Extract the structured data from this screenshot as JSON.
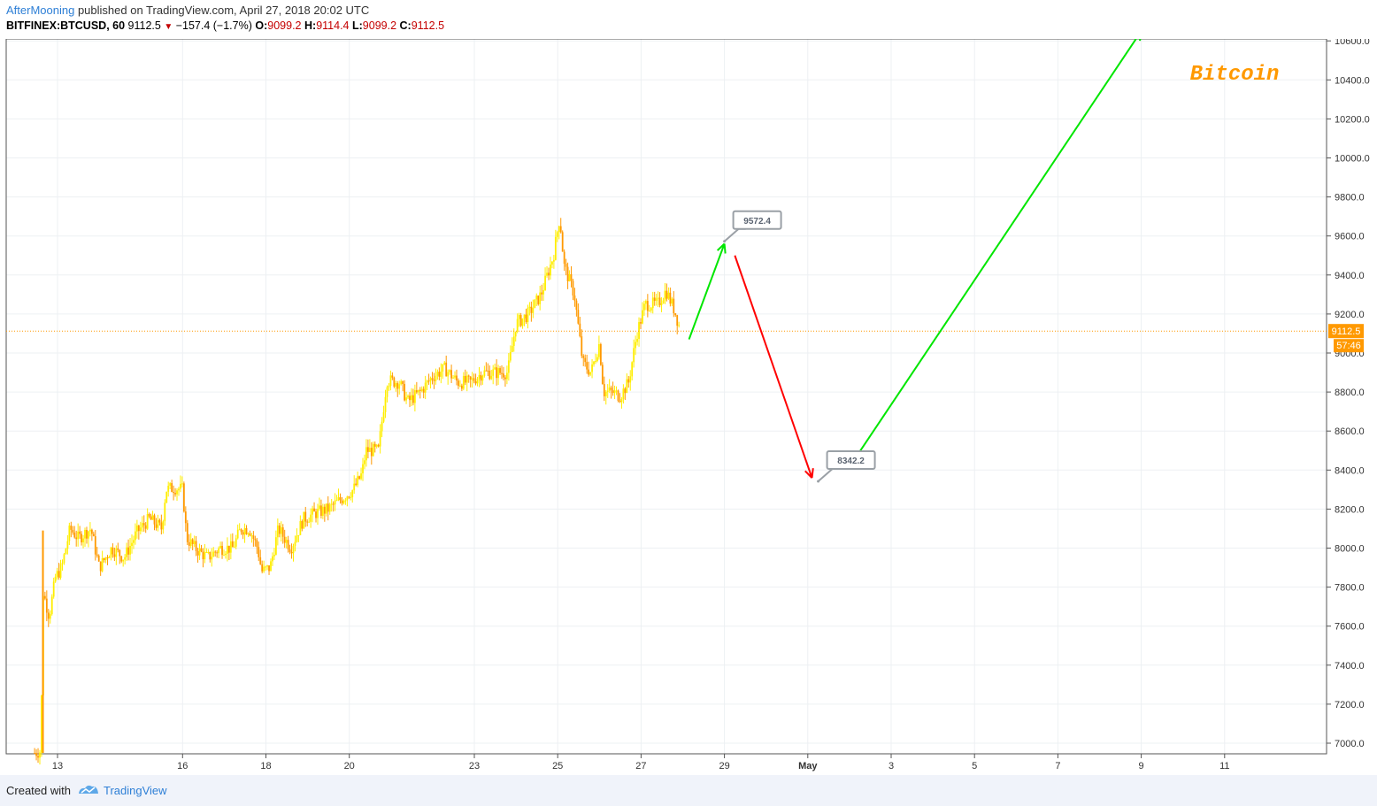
{
  "header": {
    "author": "AfterMooning",
    "published": "published on TradingView.com, April 27, 2018 20:02 UTC",
    "symbol": "BITFINEX:BTCUSD, 60",
    "last": "9112.5",
    "change": "−157.4 (−1.7%)",
    "o_label": "O:",
    "o": "9099.2",
    "h_label": "H:",
    "h": "9114.4",
    "l_label": "L:",
    "l": "9099.2",
    "c_label": "C:",
    "c": "9112.5"
  },
  "footer": {
    "created": "Created with",
    "brand": "TradingView"
  },
  "colors": {
    "candle_up": "#ffee00",
    "candle_down": "#ff9900",
    "arrow_up": "#00e600",
    "arrow_down": "#ff0000",
    "price_line": "#ff9900",
    "watermark": "#ff9900"
  },
  "chart_data": {
    "type": "candlestick",
    "title": "Bitcoin",
    "interval": "60",
    "ylim": [
      6920,
      10650
    ],
    "yticks": [
      7000,
      7200,
      7400,
      7600,
      7800,
      8000,
      8200,
      8400,
      8600,
      8800,
      9000,
      9200,
      9400,
      9600,
      9800,
      10000,
      10200,
      10400,
      10600
    ],
    "ytick_labels": [
      "7000.0",
      "7200.0",
      "7400.0",
      "7600.0",
      "7800.0",
      "8000.0",
      "8200.0",
      "8400.0",
      "8600.0",
      "8800.0",
      "9000.0",
      "9200.0",
      "9400.0",
      "9600.0",
      "9800.0",
      "10000.0",
      "10200.0",
      "10400.0",
      "10600.0"
    ],
    "xlim": [
      12.5,
      13.7
    ],
    "xticks": [
      {
        "day": 13,
        "label": "13"
      },
      {
        "day": 16,
        "label": "16"
      },
      {
        "day": 18,
        "label": "18"
      },
      {
        "day": 20,
        "label": "20"
      },
      {
        "day": 23,
        "label": "23"
      },
      {
        "day": 25,
        "label": "25"
      },
      {
        "day": 27,
        "label": "27"
      },
      {
        "day": 29,
        "label": "29"
      },
      {
        "day": 31,
        "label": "May"
      },
      {
        "day": 33,
        "label": "3"
      },
      {
        "day": 35,
        "label": "5"
      },
      {
        "day": 37,
        "label": "7"
      },
      {
        "day": 39,
        "label": "9"
      },
      {
        "day": 41,
        "label": "11"
      }
    ],
    "price_path": [
      [
        12.45,
        6950
      ],
      [
        12.6,
        6960
      ],
      [
        12.65,
        7780
      ],
      [
        12.8,
        7650
      ],
      [
        12.95,
        7850
      ],
      [
        13.1,
        7900
      ],
      [
        13.3,
        8100
      ],
      [
        13.5,
        8050
      ],
      [
        13.8,
        8100
      ],
      [
        14.0,
        7900
      ],
      [
        14.3,
        8000
      ],
      [
        14.6,
        7950
      ],
      [
        14.9,
        8080
      ],
      [
        15.2,
        8150
      ],
      [
        15.5,
        8100
      ],
      [
        15.6,
        8300
      ],
      [
        15.8,
        8310
      ],
      [
        16.0,
        8300
      ],
      [
        16.1,
        8050
      ],
      [
        16.3,
        8000
      ],
      [
        16.6,
        7950
      ],
      [
        16.9,
        8000
      ],
      [
        17.2,
        8000
      ],
      [
        17.4,
        8100
      ],
      [
        17.6,
        8100
      ],
      [
        17.8,
        8000
      ],
      [
        17.9,
        7880
      ],
      [
        18.1,
        7900
      ],
      [
        18.3,
        8100
      ],
      [
        18.6,
        8000
      ],
      [
        18.9,
        8150
      ],
      [
        19.2,
        8180
      ],
      [
        19.5,
        8200
      ],
      [
        19.8,
        8250
      ],
      [
        20.1,
        8300
      ],
      [
        20.3,
        8380
      ],
      [
        20.4,
        8500
      ],
      [
        20.7,
        8500
      ],
      [
        20.9,
        8860
      ],
      [
        21.2,
        8850
      ],
      [
        21.4,
        8750
      ],
      [
        21.7,
        8800
      ],
      [
        22.0,
        8880
      ],
      [
        22.3,
        8920
      ],
      [
        22.6,
        8850
      ],
      [
        22.9,
        8850
      ],
      [
        23.2,
        8900
      ],
      [
        23.5,
        8900
      ],
      [
        23.8,
        8900
      ],
      [
        24.0,
        9150
      ],
      [
        24.3,
        9200
      ],
      [
        24.6,
        9300
      ],
      [
        24.9,
        9500
      ],
      [
        25.05,
        9700
      ],
      [
        25.15,
        9450
      ],
      [
        25.4,
        9300
      ],
      [
        25.6,
        8950
      ],
      [
        25.8,
        8900
      ],
      [
        26.0,
        9050
      ],
      [
        26.1,
        8800
      ],
      [
        26.3,
        8800
      ],
      [
        26.5,
        8780
      ],
      [
        26.7,
        8850
      ],
      [
        26.9,
        9100
      ],
      [
        27.1,
        9250
      ],
      [
        27.4,
        9250
      ],
      [
        27.6,
        9320
      ],
      [
        27.8,
        9220
      ],
      [
        27.95,
        9112.5
      ]
    ],
    "last_price": 9112.5,
    "last_price_label": "9112.5",
    "countdown_label": "57:46",
    "arrows": [
      {
        "color": "green",
        "from": [
          28.15,
          9070
        ],
        "to": [
          29.0,
          9560
        ]
      },
      {
        "color": "red",
        "from": [
          29.25,
          9500
        ],
        "to": [
          31.1,
          8360
        ]
      },
      {
        "color": "green",
        "from": [
          32.2,
          8480
        ],
        "to": [
          39.0,
          10650
        ]
      }
    ],
    "callouts": [
      {
        "label": "9572.4",
        "anchor": [
          29.0,
          9572.4
        ]
      },
      {
        "label": "8342.2",
        "anchor": [
          31.25,
          8342.2
        ]
      }
    ]
  }
}
